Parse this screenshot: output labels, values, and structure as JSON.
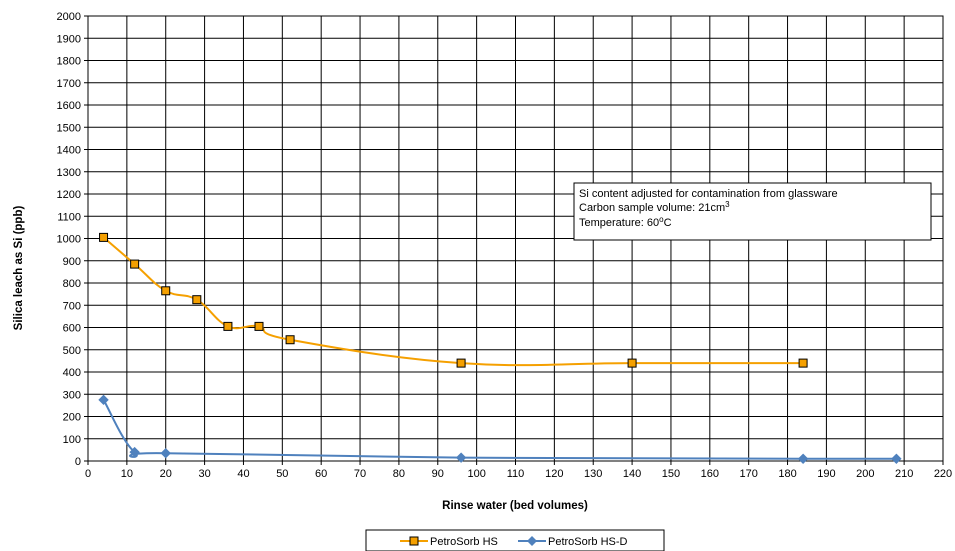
{
  "chart_data": {
    "type": "line",
    "xlabel": "Rinse water (bed volumes)",
    "ylabel": "Silica leach as Si (ppb)",
    "xlim": [
      0,
      220
    ],
    "ylim": [
      0,
      2000
    ],
    "x_ticks": [
      0,
      10,
      20,
      30,
      40,
      50,
      60,
      70,
      80,
      90,
      100,
      110,
      120,
      130,
      140,
      150,
      160,
      170,
      180,
      190,
      200,
      210,
      220
    ],
    "y_ticks": [
      0,
      100,
      200,
      300,
      400,
      500,
      600,
      700,
      800,
      900,
      1000,
      1100,
      1200,
      1300,
      1400,
      1500,
      1600,
      1700,
      1800,
      1900,
      2000
    ],
    "grid": true,
    "legend_position": "bottom-center",
    "series": [
      {
        "name": "PetroSorb HS",
        "color": "#F5A000",
        "marker": "square",
        "x": [
          4,
          12,
          20,
          28,
          36,
          44,
          52,
          96,
          140,
          184
        ],
        "y": [
          1005,
          885,
          765,
          725,
          605,
          605,
          545,
          440,
          440,
          440
        ]
      },
      {
        "name": "PetroSorb HS-D",
        "color": "#4F81BD",
        "marker": "diamond",
        "x": [
          4,
          12,
          20,
          96,
          184,
          208
        ],
        "y": [
          275,
          40,
          35,
          15,
          10,
          10
        ]
      }
    ],
    "annotation": {
      "line1": "Si content adjusted for contamination from glassware",
      "line2_prefix": "Carbon sample volume: 21cm",
      "line2_sup": "3",
      "line3_prefix": "Temperature:  60",
      "line3_sup": "o",
      "line3_suffix": "C"
    }
  }
}
